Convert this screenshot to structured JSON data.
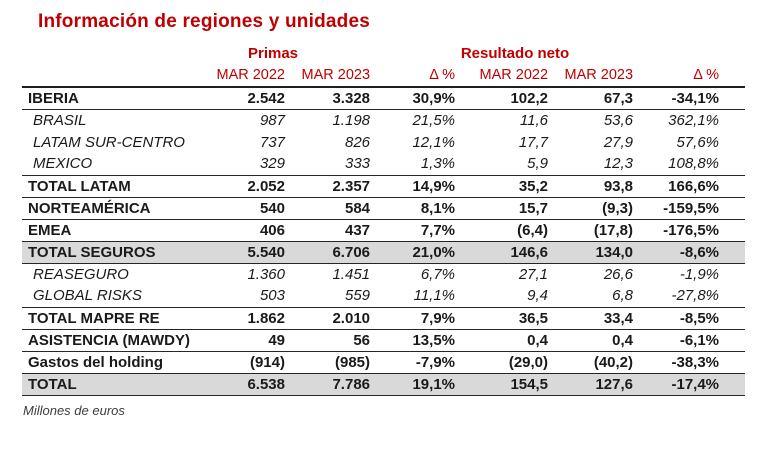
{
  "title": "Información de regiones y unidades",
  "footnote": "Millones de euros",
  "colors": {
    "accent_red": "#C00000",
    "row_highlight_gray": "#D9D9D9",
    "rule_color": "#262626"
  },
  "table": {
    "groups": [
      {
        "label": "Primas"
      },
      {
        "label": "Resultado neto"
      }
    ],
    "columns": [
      "MAR 2022",
      "MAR 2023",
      "Δ %",
      "MAR 2022",
      "MAR 2023",
      "Δ %"
    ],
    "rows": [
      {
        "label": "IBERIA",
        "style": "bold",
        "highlight": false,
        "sep": true,
        "values": [
          "2.542",
          "3.328",
          "30,9%",
          "102,2",
          "67,3",
          "-34,1%"
        ]
      },
      {
        "label": "BRASIL",
        "style": "italic",
        "highlight": false,
        "sep": false,
        "values": [
          "987",
          "1.198",
          "21,5%",
          "11,6",
          "53,6",
          "362,1%"
        ]
      },
      {
        "label": "LATAM SUR-CENTRO",
        "style": "italic",
        "highlight": false,
        "sep": false,
        "values": [
          "737",
          "826",
          "12,1%",
          "17,7",
          "27,9",
          "57,6%"
        ]
      },
      {
        "label": "MEXICO",
        "style": "italic",
        "highlight": false,
        "sep": true,
        "values": [
          "329",
          "333",
          "1,3%",
          "5,9",
          "12,3",
          "108,8%"
        ]
      },
      {
        "label": "TOTAL LATAM",
        "style": "bold",
        "highlight": false,
        "sep": true,
        "values": [
          "2.052",
          "2.357",
          "14,9%",
          "35,2",
          "93,8",
          "166,6%"
        ]
      },
      {
        "label": "NORTEAMÉRICA",
        "style": "bold",
        "highlight": false,
        "sep": true,
        "values": [
          "540",
          "584",
          "8,1%",
          "15,7",
          "(9,3)",
          "-159,5%"
        ]
      },
      {
        "label": "EMEA",
        "style": "bold",
        "highlight": false,
        "sep": true,
        "values": [
          "406",
          "437",
          "7,7%",
          "(6,4)",
          "(17,8)",
          "-176,5%"
        ]
      },
      {
        "label": "TOTAL SEGUROS",
        "style": "bold",
        "highlight": true,
        "sep": true,
        "values": [
          "5.540",
          "6.706",
          "21,0%",
          "146,6",
          "134,0",
          "-8,6%"
        ]
      },
      {
        "label": "REASEGURO",
        "style": "italic",
        "highlight": false,
        "sep": false,
        "values": [
          "1.360",
          "1.451",
          "6,7%",
          "27,1",
          "26,6",
          "-1,9%"
        ]
      },
      {
        "label": "GLOBAL RISKS",
        "style": "italic",
        "highlight": false,
        "sep": true,
        "values": [
          "503",
          "559",
          "11,1%",
          "9,4",
          "6,8",
          "-27,8%"
        ]
      },
      {
        "label": "TOTAL MAPRE RE",
        "style": "bold",
        "highlight": false,
        "sep": true,
        "values": [
          "1.862",
          "2.010",
          "7,9%",
          "36,5",
          "33,4",
          "-8,5%"
        ]
      },
      {
        "label": "ASISTENCIA (MAWDY)",
        "style": "bold",
        "highlight": false,
        "sep": true,
        "values": [
          "49",
          "56",
          "13,5%",
          "0,4",
          "0,4",
          "-6,1%"
        ]
      },
      {
        "label": "Gastos del holding",
        "style": "bold",
        "highlight": false,
        "sep": true,
        "values": [
          "(914)",
          "(985)",
          "-7,9%",
          "(29,0)",
          "(40,2)",
          "-38,3%"
        ]
      },
      {
        "label": "TOTAL",
        "style": "bold",
        "highlight": true,
        "sep": true,
        "values": [
          "6.538",
          "7.786",
          "19,1%",
          "154,5",
          "127,6",
          "-17,4%"
        ]
      }
    ]
  }
}
